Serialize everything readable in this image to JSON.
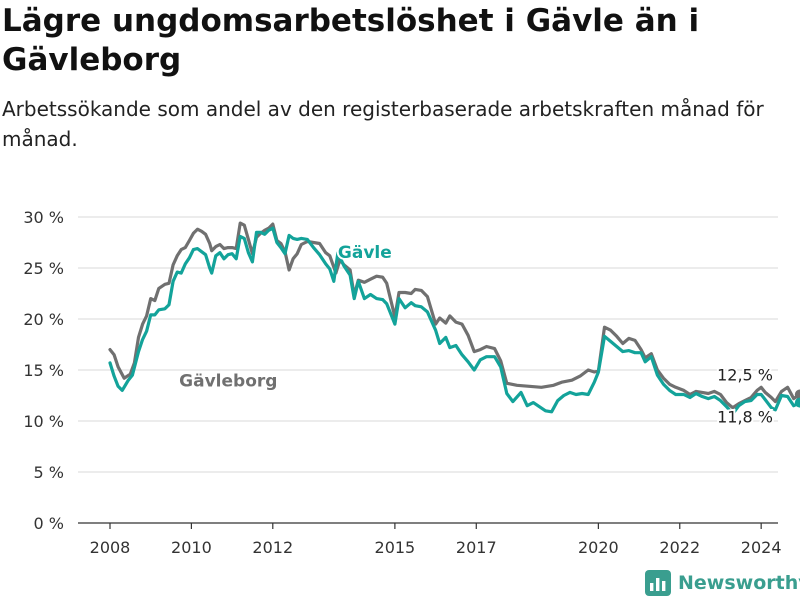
{
  "title": "Lägre ungdomsarbetslöshet i Gävle än i Gävleborg",
  "subtitle": "Arbetssökande som andel av den registerbaserade arbetskraften månad för månad.",
  "brand": "Newsworthy",
  "colors": {
    "gavle": "#13a39a",
    "gavleborg": "#707070",
    "grid": "#d9d9d9",
    "axis": "#333333"
  },
  "chart_data": {
    "type": "line",
    "title": "Lägre ungdomsarbetslöshet i Gävle än i Gävleborg",
    "subtitle": "Arbetssökande som andel av den registerbaserade arbetskraften månad för månad.",
    "xlabel": "",
    "ylabel": "",
    "xlim": [
      2008,
      2025.2
    ],
    "ylim": [
      0,
      30
    ],
    "grid": true,
    "x_ticks": [
      2008,
      2010,
      2012,
      2015,
      2017,
      2020,
      2022,
      2024
    ],
    "x_tick_labels": [
      "2008",
      "2010",
      "2012",
      "2015",
      "2017",
      "2020",
      "2022",
      "2024"
    ],
    "y_ticks": [
      0,
      5,
      10,
      15,
      20,
      25,
      30
    ],
    "y_tick_labels": [
      "0 %",
      "5 %",
      "10 %",
      "15 %",
      "20 %",
      "25 %",
      "30 %"
    ],
    "series": [
      {
        "name": "Gävleborg",
        "label_at": [
          2009.7,
          13.4
        ],
        "end_label": "12,5 %",
        "points": [
          [
            2008.0,
            17.0
          ],
          [
            2008.1,
            16.5
          ],
          [
            2008.2,
            15.3
          ],
          [
            2008.35,
            14.2
          ],
          [
            2008.5,
            14.6
          ],
          [
            2008.6,
            15.7
          ],
          [
            2008.7,
            18.2
          ],
          [
            2008.8,
            19.5
          ],
          [
            2008.9,
            20.3
          ],
          [
            2009.0,
            22.0
          ],
          [
            2009.1,
            21.8
          ],
          [
            2009.2,
            23.0
          ],
          [
            2009.35,
            23.4
          ],
          [
            2009.45,
            23.5
          ],
          [
            2009.55,
            25.3
          ],
          [
            2009.65,
            26.2
          ],
          [
            2009.75,
            26.8
          ],
          [
            2009.85,
            27.0
          ],
          [
            2009.95,
            27.7
          ],
          [
            2010.05,
            28.4
          ],
          [
            2010.15,
            28.8
          ],
          [
            2010.25,
            28.6
          ],
          [
            2010.35,
            28.3
          ],
          [
            2010.45,
            27.4
          ],
          [
            2010.5,
            26.7
          ],
          [
            2010.6,
            27.1
          ],
          [
            2010.7,
            27.3
          ],
          [
            2010.8,
            26.9
          ],
          [
            2010.9,
            27.0
          ],
          [
            2011.0,
            27.0
          ],
          [
            2011.1,
            26.9
          ],
          [
            2011.2,
            29.4
          ],
          [
            2011.3,
            29.2
          ],
          [
            2011.4,
            27.8
          ],
          [
            2011.5,
            26.4
          ],
          [
            2011.6,
            28.0
          ],
          [
            2011.7,
            28.4
          ],
          [
            2011.8,
            28.7
          ],
          [
            2011.9,
            28.9
          ],
          [
            2012.0,
            29.3
          ],
          [
            2012.1,
            27.7
          ],
          [
            2012.2,
            27.4
          ],
          [
            2012.3,
            26.6
          ],
          [
            2012.4,
            24.8
          ],
          [
            2012.5,
            25.9
          ],
          [
            2012.6,
            26.4
          ],
          [
            2012.7,
            27.3
          ],
          [
            2012.85,
            27.6
          ],
          [
            2013.0,
            27.5
          ],
          [
            2013.15,
            27.4
          ],
          [
            2013.3,
            26.5
          ],
          [
            2013.4,
            26.2
          ],
          [
            2013.55,
            24.5
          ],
          [
            2013.65,
            25.8
          ],
          [
            2013.75,
            25.3
          ],
          [
            2013.9,
            24.8
          ],
          [
            2014.0,
            22.3
          ],
          [
            2014.1,
            23.8
          ],
          [
            2014.25,
            23.6
          ],
          [
            2014.4,
            23.9
          ],
          [
            2014.55,
            24.2
          ],
          [
            2014.7,
            24.1
          ],
          [
            2014.8,
            23.5
          ],
          [
            2015.0,
            20.2
          ],
          [
            2015.1,
            22.6
          ],
          [
            2015.25,
            22.6
          ],
          [
            2015.4,
            22.5
          ],
          [
            2015.5,
            22.9
          ],
          [
            2015.65,
            22.8
          ],
          [
            2015.8,
            22.2
          ],
          [
            2016.0,
            19.5
          ],
          [
            2016.1,
            20.1
          ],
          [
            2016.25,
            19.6
          ],
          [
            2016.35,
            20.3
          ],
          [
            2016.5,
            19.7
          ],
          [
            2016.65,
            19.5
          ],
          [
            2016.8,
            18.4
          ],
          [
            2016.95,
            16.8
          ],
          [
            2017.1,
            17.0
          ],
          [
            2017.25,
            17.3
          ],
          [
            2017.45,
            17.1
          ],
          [
            2017.6,
            15.9
          ],
          [
            2017.75,
            13.7
          ],
          [
            2018.0,
            13.5
          ],
          [
            2018.3,
            13.4
          ],
          [
            2018.6,
            13.3
          ],
          [
            2018.9,
            13.5
          ],
          [
            2019.1,
            13.8
          ],
          [
            2019.35,
            14.0
          ],
          [
            2019.55,
            14.4
          ],
          [
            2019.75,
            15.0
          ],
          [
            2019.9,
            14.8
          ],
          [
            2020.0,
            14.9
          ],
          [
            2020.15,
            19.2
          ],
          [
            2020.3,
            18.9
          ],
          [
            2020.45,
            18.3
          ],
          [
            2020.6,
            17.6
          ],
          [
            2020.75,
            18.1
          ],
          [
            2020.9,
            17.9
          ],
          [
            2021.05,
            17.0
          ],
          [
            2021.15,
            16.2
          ],
          [
            2021.3,
            16.6
          ],
          [
            2021.45,
            15.0
          ],
          [
            2021.6,
            14.2
          ],
          [
            2021.75,
            13.6
          ],
          [
            2021.9,
            13.3
          ],
          [
            2022.1,
            13.0
          ],
          [
            2022.25,
            12.6
          ],
          [
            2022.4,
            12.9
          ],
          [
            2022.55,
            12.8
          ],
          [
            2022.7,
            12.7
          ],
          [
            2022.85,
            12.9
          ],
          [
            2023.0,
            12.6
          ],
          [
            2023.15,
            11.8
          ],
          [
            2023.3,
            11.3
          ],
          [
            2023.45,
            11.7
          ],
          [
            2023.6,
            12.0
          ],
          [
            2023.75,
            12.3
          ],
          [
            2023.9,
            13.0
          ],
          [
            2024.0,
            13.3
          ],
          [
            2024.1,
            12.8
          ],
          [
            2024.25,
            12.3
          ],
          [
            2024.35,
            11.9
          ],
          [
            2024.5,
            12.9
          ],
          [
            2024.65,
            13.3
          ],
          [
            2024.8,
            12.2
          ],
          [
            2024.95,
            12.6
          ]
        ]
      },
      {
        "name": "Gävle",
        "label_at": [
          2013.6,
          26.0
        ],
        "end_label": "11,8 %",
        "points": [
          [
            2008.0,
            15.7
          ],
          [
            2008.1,
            14.4
          ],
          [
            2008.2,
            13.4
          ],
          [
            2008.3,
            13.0
          ],
          [
            2008.45,
            14.0
          ],
          [
            2008.55,
            14.5
          ],
          [
            2008.7,
            16.8
          ],
          [
            2008.8,
            18.0
          ],
          [
            2008.9,
            18.8
          ],
          [
            2009.0,
            20.4
          ],
          [
            2009.1,
            20.4
          ],
          [
            2009.2,
            20.9
          ],
          [
            2009.35,
            21.0
          ],
          [
            2009.45,
            21.4
          ],
          [
            2009.55,
            23.7
          ],
          [
            2009.65,
            24.6
          ],
          [
            2009.75,
            24.5
          ],
          [
            2009.85,
            25.4
          ],
          [
            2009.95,
            26.0
          ],
          [
            2010.05,
            26.8
          ],
          [
            2010.15,
            26.9
          ],
          [
            2010.25,
            26.6
          ],
          [
            2010.35,
            26.3
          ],
          [
            2010.45,
            25.0
          ],
          [
            2010.5,
            24.5
          ],
          [
            2010.6,
            26.2
          ],
          [
            2010.7,
            26.5
          ],
          [
            2010.8,
            25.9
          ],
          [
            2010.9,
            26.3
          ],
          [
            2011.0,
            26.4
          ],
          [
            2011.1,
            25.9
          ],
          [
            2011.2,
            28.1
          ],
          [
            2011.3,
            27.9
          ],
          [
            2011.4,
            26.5
          ],
          [
            2011.5,
            25.6
          ],
          [
            2011.6,
            28.5
          ],
          [
            2011.7,
            28.5
          ],
          [
            2011.8,
            28.3
          ],
          [
            2011.9,
            28.7
          ],
          [
            2012.0,
            28.9
          ],
          [
            2012.1,
            27.5
          ],
          [
            2012.2,
            27.0
          ],
          [
            2012.3,
            26.4
          ],
          [
            2012.4,
            28.2
          ],
          [
            2012.5,
            27.9
          ],
          [
            2012.6,
            27.8
          ],
          [
            2012.7,
            27.9
          ],
          [
            2012.85,
            27.8
          ],
          [
            2013.0,
            27.0
          ],
          [
            2013.15,
            26.3
          ],
          [
            2013.3,
            25.4
          ],
          [
            2013.4,
            24.9
          ],
          [
            2013.5,
            23.7
          ],
          [
            2013.6,
            26.5
          ],
          [
            2013.75,
            25.2
          ],
          [
            2013.9,
            24.3
          ],
          [
            2014.0,
            22.0
          ],
          [
            2014.1,
            23.7
          ],
          [
            2014.25,
            22.0
          ],
          [
            2014.4,
            22.4
          ],
          [
            2014.55,
            22.0
          ],
          [
            2014.7,
            21.9
          ],
          [
            2014.8,
            21.5
          ],
          [
            2015.0,
            19.5
          ],
          [
            2015.1,
            22.0
          ],
          [
            2015.25,
            21.1
          ],
          [
            2015.4,
            21.6
          ],
          [
            2015.5,
            21.3
          ],
          [
            2015.65,
            21.2
          ],
          [
            2015.8,
            20.7
          ],
          [
            2016.0,
            18.9
          ],
          [
            2016.1,
            17.6
          ],
          [
            2016.25,
            18.2
          ],
          [
            2016.35,
            17.2
          ],
          [
            2016.5,
            17.4
          ],
          [
            2016.65,
            16.5
          ],
          [
            2016.8,
            15.8
          ],
          [
            2016.95,
            15.0
          ],
          [
            2017.1,
            16.0
          ],
          [
            2017.25,
            16.3
          ],
          [
            2017.45,
            16.3
          ],
          [
            2017.6,
            15.3
          ],
          [
            2017.75,
            12.7
          ],
          [
            2017.9,
            11.9
          ],
          [
            2018.1,
            12.8
          ],
          [
            2018.25,
            11.5
          ],
          [
            2018.4,
            11.8
          ],
          [
            2018.55,
            11.4
          ],
          [
            2018.7,
            11.0
          ],
          [
            2018.85,
            10.9
          ],
          [
            2019.0,
            12.0
          ],
          [
            2019.15,
            12.5
          ],
          [
            2019.3,
            12.8
          ],
          [
            2019.45,
            12.6
          ],
          [
            2019.6,
            12.7
          ],
          [
            2019.75,
            12.6
          ],
          [
            2019.9,
            13.8
          ],
          [
            2020.0,
            14.8
          ],
          [
            2020.15,
            18.3
          ],
          [
            2020.3,
            17.8
          ],
          [
            2020.45,
            17.3
          ],
          [
            2020.6,
            16.8
          ],
          [
            2020.75,
            16.9
          ],
          [
            2020.9,
            16.7
          ],
          [
            2021.05,
            16.7
          ],
          [
            2021.15,
            15.8
          ],
          [
            2021.3,
            16.3
          ],
          [
            2021.45,
            14.5
          ],
          [
            2021.6,
            13.6
          ],
          [
            2021.75,
            13.0
          ],
          [
            2021.9,
            12.6
          ],
          [
            2022.1,
            12.6
          ],
          [
            2022.25,
            12.3
          ],
          [
            2022.4,
            12.7
          ],
          [
            2022.55,
            12.4
          ],
          [
            2022.7,
            12.2
          ],
          [
            2022.85,
            12.4
          ],
          [
            2023.0,
            12.0
          ],
          [
            2023.15,
            11.4
          ],
          [
            2023.3,
            10.7
          ],
          [
            2023.45,
            11.5
          ],
          [
            2023.6,
            11.9
          ],
          [
            2023.75,
            12.0
          ],
          [
            2023.9,
            12.6
          ],
          [
            2024.0,
            12.6
          ],
          [
            2024.1,
            12.1
          ],
          [
            2024.25,
            11.3
          ],
          [
            2024.35,
            11.1
          ],
          [
            2024.5,
            12.5
          ],
          [
            2024.65,
            12.4
          ],
          [
            2024.8,
            11.5
          ],
          [
            2024.95,
            11.8
          ]
        ]
      }
    ]
  }
}
